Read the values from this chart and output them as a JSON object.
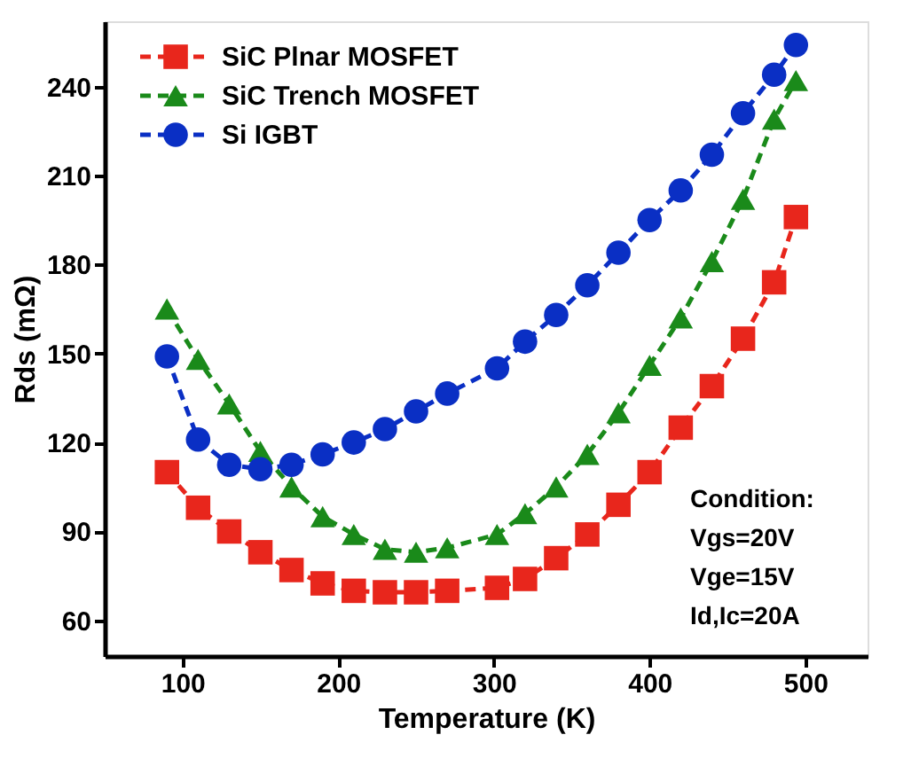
{
  "chart_data": {
    "type": "line",
    "xlabel": "Temperature (K)",
    "ylabel": "Rds (mΩ)",
    "x": [
      90,
      110,
      130,
      150,
      170,
      190,
      210,
      230,
      250,
      270,
      302,
      320,
      340,
      360,
      380,
      400,
      420,
      440,
      460,
      480,
      494
    ],
    "series": [
      {
        "name": "SiC Plnar MOSFET",
        "color": "#e8261c",
        "marker": "square",
        "line_style": "dashed",
        "values": [
          110,
          98,
          90,
          83,
          77,
          72.5,
          70,
          69.5,
          69.5,
          70,
          71,
          74,
          81,
          89,
          99,
          110,
          125,
          139,
          155,
          174,
          196
        ]
      },
      {
        "name": "SiC Trench MOSFET",
        "color": "#1a8a1a",
        "marker": "triangle",
        "line_style": "dashed",
        "values": [
          165,
          148,
          133,
          117,
          105,
          95,
          89,
          84,
          83,
          84.5,
          89,
          96,
          105,
          116,
          130,
          146,
          162,
          181,
          202,
          229,
          242
        ]
      },
      {
        "name": "Si IGBT",
        "color": "#0a2fc4",
        "marker": "circle",
        "line_style": "dashed",
        "values": [
          149,
          121,
          112.5,
          111,
          112.5,
          116,
          120,
          124.5,
          130.5,
          136.5,
          145,
          154,
          163,
          173,
          184,
          195,
          205,
          217,
          231,
          244,
          254
        ]
      }
    ],
    "xlim": [
      50,
      540
    ],
    "xticks": [
      100,
      200,
      300,
      400,
      500
    ],
    "ylim": [
      48,
      262
    ],
    "yticks": [
      60,
      90,
      120,
      150,
      180,
      210,
      240
    ],
    "grid": false,
    "legend": "top left",
    "annotations": [
      "Condition:\nVgs=20V\nVge=15V\nId,Ic=20A"
    ]
  }
}
